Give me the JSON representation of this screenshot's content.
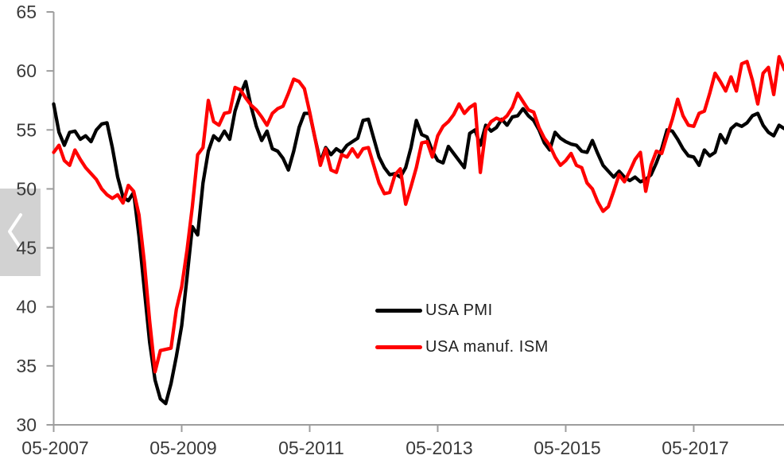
{
  "colors": {
    "background": "#ffffff",
    "axis": "#9d9d9d",
    "tick_label_text": "#3a3a3a",
    "legend_text": "#1f1f1f",
    "series_pmi": "#000000",
    "series_ism": "#ff0000",
    "overlay_bg": "#d2d2d2",
    "chevron": "#ffffff"
  },
  "overlay": {
    "icon": "chevron-left",
    "purpose": "previous-chart"
  },
  "chart_data": {
    "type": "line",
    "title": "",
    "xlabel": "",
    "ylabel": "",
    "grid": false,
    "legend_position": "inside-bottom-center",
    "frequency": "monthly",
    "x_start": "2007-05",
    "x_end": "2018-10",
    "ylim": [
      30,
      65
    ],
    "y_ticks": [
      30,
      35,
      40,
      45,
      50,
      55,
      60,
      65
    ],
    "x_tick_labels": [
      "05-2007",
      "05-2009",
      "05-2011",
      "05-2013",
      "05-2015",
      "05-2017"
    ],
    "x_tick_month_offsets": [
      0,
      24,
      48,
      72,
      96,
      120
    ],
    "series": [
      {
        "name": "USA PMI",
        "color": "#000000",
        "values": [
          57.2,
          54.8,
          53.7,
          54.8,
          54.9,
          54.2,
          54.5,
          54.0,
          55.0,
          55.5,
          55.6,
          53.5,
          51.0,
          49.3,
          49.0,
          49.7,
          46.0,
          41.5,
          37.0,
          33.8,
          32.2,
          31.8,
          33.5,
          35.8,
          38.4,
          42.5,
          46.8,
          46.1,
          50.5,
          53.2,
          54.5,
          54.1,
          54.9,
          54.2,
          56.6,
          58.0,
          59.1,
          57.0,
          55.3,
          54.1,
          54.9,
          53.4,
          53.2,
          52.6,
          51.6,
          53.2,
          55.2,
          56.4,
          56.4,
          54.3,
          52.3,
          53.5,
          52.9,
          53.4,
          53.1,
          53.7,
          54.0,
          54.3,
          55.8,
          55.9,
          54.3,
          52.7,
          51.8,
          51.2,
          51.3,
          51.0,
          51.8,
          53.5,
          55.8,
          54.6,
          54.4,
          53.2,
          52.4,
          52.2,
          53.6,
          53.0,
          52.4,
          51.8,
          54.7,
          55.0,
          53.7,
          55.4,
          54.9,
          55.2,
          55.9,
          55.4,
          56.1,
          56.2,
          56.8,
          56.2,
          55.8,
          55.0,
          53.9,
          53.3,
          54.8,
          54.3,
          54.0,
          53.8,
          53.7,
          53.2,
          53.1,
          54.1,
          53.0,
          52.0,
          51.5,
          51.0,
          51.5,
          51.0,
          50.7,
          51.0,
          50.6,
          50.8,
          51.2,
          52.2,
          53.4,
          55.0,
          54.9,
          54.2,
          53.4,
          52.8,
          52.7,
          52.0,
          53.3,
          52.8,
          53.1,
          54.6,
          53.9,
          55.1,
          55.5,
          55.3,
          55.6,
          56.2,
          56.4,
          55.4,
          54.8,
          54.5,
          55.4,
          55.1
        ]
      },
      {
        "name": "USA manuf. ISM",
        "color": "#ff0000",
        "values": [
          53.1,
          53.7,
          52.4,
          52.0,
          53.3,
          52.5,
          51.8,
          51.3,
          50.8,
          50.0,
          49.5,
          49.2,
          49.5,
          48.8,
          50.3,
          49.8,
          47.8,
          43.8,
          38.8,
          34.5,
          36.3,
          36.4,
          36.5,
          39.8,
          41.7,
          44.8,
          48.5,
          52.9,
          53.5,
          57.5,
          55.7,
          55.4,
          56.4,
          56.5,
          58.6,
          58.4,
          57.7,
          57.1,
          56.7,
          56.1,
          55.4,
          56.4,
          56.8,
          57.0,
          58.1,
          59.3,
          59.1,
          58.5,
          56.5,
          54.3,
          52.0,
          53.4,
          51.6,
          51.4,
          52.9,
          52.7,
          53.4,
          52.7,
          53.4,
          53.5,
          52.0,
          50.5,
          49.6,
          49.7,
          51.2,
          51.7,
          48.7,
          50.2,
          51.8,
          53.9,
          54.0,
          52.7,
          54.5,
          55.3,
          55.7,
          56.3,
          57.2,
          56.4,
          56.9,
          57.2,
          51.4,
          55.0,
          55.7,
          56.0,
          55.8,
          56.2,
          56.9,
          58.1,
          57.4,
          56.7,
          56.5,
          55.2,
          54.3,
          53.7,
          52.7,
          52.0,
          52.4,
          53.0,
          52.0,
          51.8,
          50.5,
          50.0,
          48.9,
          48.1,
          48.5,
          49.8,
          51.2,
          50.6,
          51.5,
          52.5,
          53.1,
          49.8,
          52.0,
          53.2,
          53.0,
          54.5,
          55.9,
          57.6,
          56.2,
          55.4,
          55.3,
          56.4,
          56.6,
          58.1,
          59.8,
          59.1,
          58.3,
          59.5,
          58.3,
          60.6,
          60.8,
          59.2,
          57.2,
          59.8,
          60.3,
          58.0,
          61.2,
          60.1
        ]
      }
    ]
  }
}
